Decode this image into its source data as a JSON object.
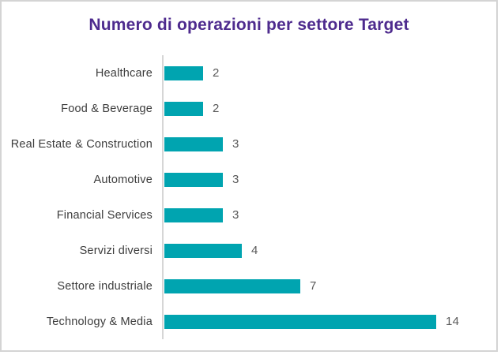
{
  "window": {
    "background_color": "#ffffff",
    "frame_border_color": "#d4d4d4"
  },
  "chart_data": {
    "type": "bar",
    "orientation": "horizontal",
    "title": "Numero di operazioni per settore Target",
    "title_color": "#4e2b8e",
    "categories": [
      "Healthcare",
      "Food & Beverage",
      "Real Estate & Construction",
      "Automotive",
      "Financial Services",
      "Servizi diversi",
      "Settore industriale",
      "Technology & Media"
    ],
    "values": [
      2,
      2,
      3,
      3,
      3,
      4,
      7,
      14
    ],
    "xlabel": "",
    "ylabel": "",
    "xlim": [
      0,
      14.5
    ],
    "grid": false,
    "legend": false,
    "data_labels": true,
    "bar_color": "#00a4b0",
    "category_label_color": "#3c3c3c",
    "value_label_color": "#595959",
    "axis_line_color": "#d6d6d6"
  }
}
